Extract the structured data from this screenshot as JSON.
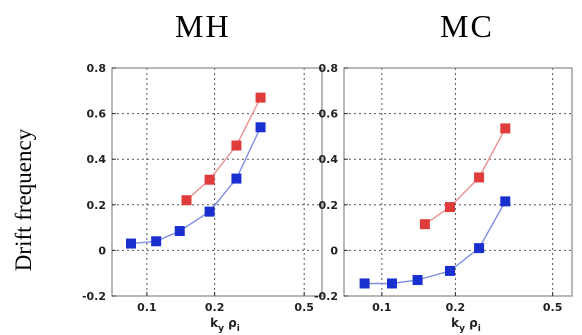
{
  "ylabel": "Drift frequency",
  "chart_data": [
    {
      "type": "line",
      "title": "MH",
      "xlabel": "k",
      "xlabel_sub1": "y",
      "xlabel_greek": "ρ",
      "xlabel_sub2": "i",
      "xscale": "log",
      "xlim": [
        0.07,
        0.6
      ],
      "ylim": [
        -0.2,
        0.8
      ],
      "xticks": [
        0.1,
        0.2,
        0.5
      ],
      "xtick_labels": [
        "0.1",
        "0.2",
        "0.5"
      ],
      "yticks": [
        -0.2,
        0,
        0.2,
        0.4,
        0.6,
        0.8
      ],
      "ytick_labels": [
        "-0.2",
        "0",
        "0.2",
        "0.4",
        "0.6",
        "0.8"
      ],
      "grid": true,
      "series": [
        {
          "color": "#e03c3c",
          "line_color": "#e89090",
          "x": [
            0.15,
            0.19,
            0.25,
            0.32
          ],
          "y": [
            0.22,
            0.31,
            0.46,
            0.67
          ]
        },
        {
          "color": "#1a2fd0",
          "line_color": "#8090e0",
          "x": [
            0.085,
            0.11,
            0.14,
            0.19,
            0.25,
            0.32
          ],
          "y": [
            0.03,
            0.04,
            0.085,
            0.17,
            0.315,
            0.54
          ]
        }
      ]
    },
    {
      "type": "line",
      "title": "MC",
      "xlabel": "k",
      "xlabel_sub1": "y",
      "xlabel_greek": "ρ",
      "xlabel_sub2": "i",
      "xscale": "log",
      "xlim": [
        0.07,
        0.6
      ],
      "ylim": [
        -0.2,
        0.8
      ],
      "xticks": [
        0.1,
        0.2,
        0.5
      ],
      "xtick_labels": [
        "0.1",
        "0.2",
        "0.5"
      ],
      "yticks": [
        -0.2,
        0,
        0.2,
        0.4,
        0.6,
        0.8
      ],
      "ytick_labels": [
        "-0.2",
        "0",
        "0.2",
        "0.4",
        "0.6",
        "0.8"
      ],
      "grid": true,
      "series": [
        {
          "color": "#e03c3c",
          "line_color": "#e89090",
          "x": [
            0.15,
            0.19,
            0.25,
            0.32
          ],
          "y": [
            0.115,
            0.19,
            0.32,
            0.535
          ]
        },
        {
          "color": "#1a2fd0",
          "line_color": "#8090e0",
          "x": [
            0.085,
            0.11,
            0.14,
            0.19,
            0.25,
            0.32
          ],
          "y": [
            -0.145,
            -0.145,
            -0.13,
            -0.09,
            0.01,
            0.215
          ]
        }
      ]
    }
  ]
}
